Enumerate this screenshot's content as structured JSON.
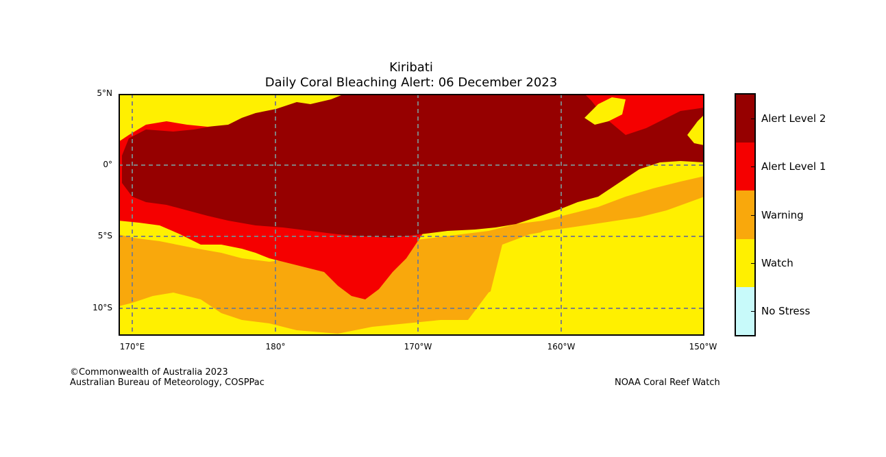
{
  "title": "Kiribati",
  "subtitle": "Daily Coral Bleaching Alert: 06 December 2023",
  "lat_labels": [
    "5°N",
    "0°",
    "5°S",
    "10°S"
  ],
  "lon_labels": [
    "170°E",
    "180°",
    "170°W",
    "160°W",
    "150°W"
  ],
  "legend": [
    {
      "label": "Alert Level 2",
      "color": "#960000"
    },
    {
      "label": "Alert Level 1",
      "color": "#f50000"
    },
    {
      "label": "Warning",
      "color": "#f9a80c"
    },
    {
      "label": "Watch",
      "color": "#fff000"
    },
    {
      "label": "No Stress",
      "color": "#c8fafa"
    }
  ],
  "credits": {
    "left_line1": "©Commonwealth of Australia 2023",
    "left_line2": "Australian Bureau of Meteorology, COSPPac",
    "right": "NOAA Coral Reef Watch"
  }
}
